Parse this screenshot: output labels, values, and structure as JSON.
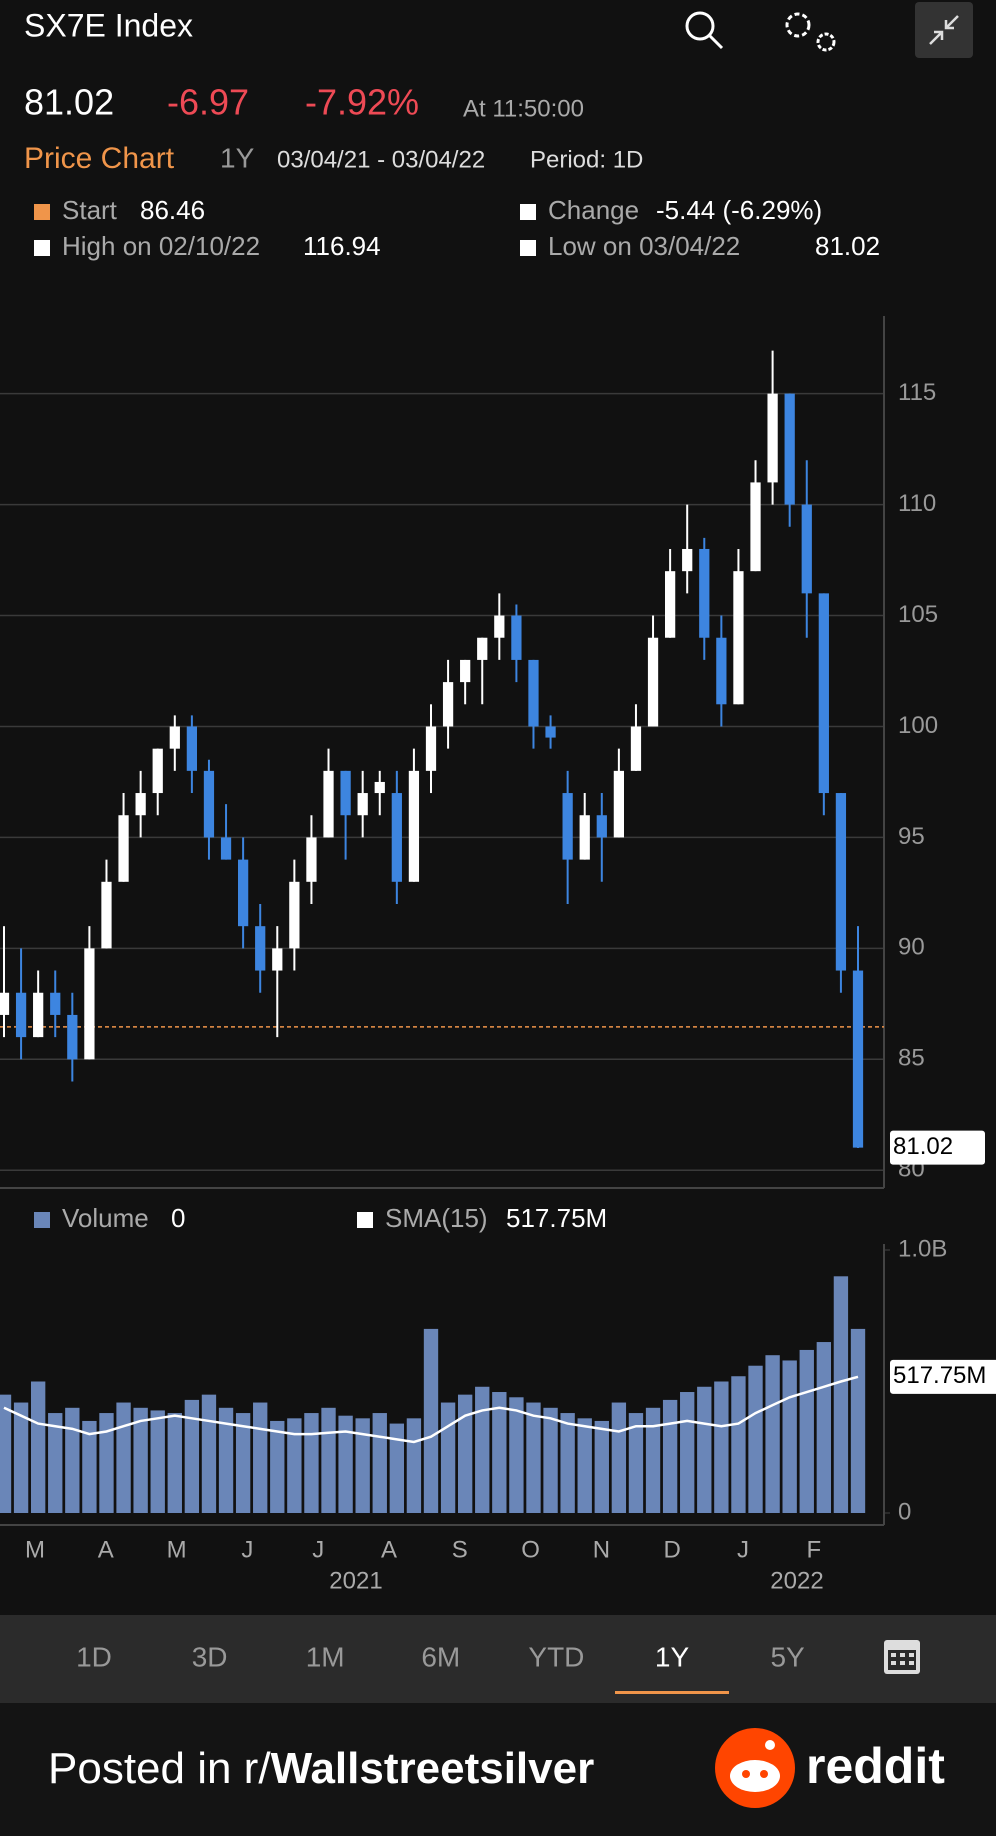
{
  "header": {
    "title": "SX7E Index",
    "price": "81.02",
    "change": "-6.97",
    "change_pct": "-7.92%",
    "time": "At 11:50:00",
    "chart_name": "Price Chart",
    "range": "1Y",
    "dates": "03/04/21 - 03/04/22",
    "period": "Period: 1D"
  },
  "legend": {
    "start_label": "Start",
    "start_value": "86.46",
    "change_label": "Change",
    "change_value": "-5.44 (-6.29%)",
    "high_label": "High on 02/10/22",
    "high_value": "116.94",
    "low_label": "Low on 03/04/22",
    "low_value": "81.02"
  },
  "chart_data": [
    {
      "type": "candlestick",
      "candles": [
        [
          87,
          91,
          86,
          88
        ],
        [
          88,
          90,
          85,
          86
        ],
        [
          86,
          89,
          86,
          88
        ],
        [
          88,
          89,
          86,
          87
        ],
        [
          87,
          88,
          84,
          85
        ],
        [
          85,
          91,
          85,
          90
        ],
        [
          90,
          94,
          90,
          93
        ],
        [
          93,
          97,
          93,
          96
        ],
        [
          96,
          98,
          95,
          97
        ],
        [
          97,
          99,
          96,
          99
        ],
        [
          99,
          100.5,
          98,
          100
        ],
        [
          100,
          100.5,
          97,
          98
        ],
        [
          98,
          98.5,
          94,
          95
        ],
        [
          95,
          96.5,
          94,
          94
        ],
        [
          94,
          95,
          90,
          91
        ],
        [
          91,
          92,
          88,
          89
        ],
        [
          89,
          91,
          86,
          90
        ],
        [
          90,
          94,
          89,
          93
        ],
        [
          93,
          96,
          92,
          95
        ],
        [
          95,
          99,
          95,
          98
        ],
        [
          98,
          98,
          94,
          96
        ],
        [
          96,
          98,
          95,
          97
        ],
        [
          97,
          98,
          96,
          97.5
        ],
        [
          97,
          98,
          92,
          93
        ],
        [
          93,
          99,
          93,
          98
        ],
        [
          98,
          101,
          97,
          100
        ],
        [
          100,
          103,
          99,
          102
        ],
        [
          102,
          103,
          101,
          103
        ],
        [
          103,
          104,
          101,
          104
        ],
        [
          104,
          106,
          103,
          105
        ],
        [
          105,
          105.5,
          102,
          103
        ],
        [
          103,
          103,
          99,
          100
        ],
        [
          100,
          100.5,
          99,
          99.5
        ],
        [
          97,
          98,
          92,
          94
        ],
        [
          94,
          97,
          94,
          96
        ],
        [
          96,
          97,
          93,
          95
        ],
        [
          95,
          99,
          95,
          98
        ],
        [
          98,
          101,
          98,
          100
        ],
        [
          100,
          105,
          100,
          104
        ],
        [
          104,
          108,
          104,
          107
        ],
        [
          107,
          110,
          106,
          108
        ],
        [
          108,
          108.5,
          103,
          104
        ],
        [
          104,
          105,
          100,
          101
        ],
        [
          101,
          108,
          101,
          107
        ],
        [
          107,
          112,
          107,
          111
        ],
        [
          111,
          116.94,
          110,
          115
        ],
        [
          115,
          115,
          109,
          110
        ],
        [
          110,
          112,
          104,
          106
        ],
        [
          106,
          106,
          96,
          97
        ],
        [
          97,
          97,
          88,
          89
        ],
        [
          89,
          91,
          81,
          81.02
        ]
      ],
      "up_color": "#ffffff",
      "down_color": "#3d85e0",
      "ylim": [
        79.2,
        118.5
      ],
      "yticks": [
        80,
        85,
        90,
        95,
        100,
        105,
        110,
        115
      ],
      "grid": true,
      "reference_line": 86.46,
      "reference_color": "#f0954a"
    },
    {
      "type": "bar",
      "series": [
        {
          "name": "Volume",
          "color": "#6a86b8",
          "current": 0,
          "values": [
            450,
            420,
            500,
            380,
            400,
            350,
            380,
            420,
            400,
            390,
            380,
            430,
            450,
            400,
            380,
            420,
            350,
            360,
            380,
            400,
            370,
            360,
            380,
            340,
            360,
            700,
            420,
            450,
            480,
            460,
            440,
            420,
            400,
            380,
            360,
            350,
            420,
            380,
            400,
            430,
            460,
            480,
            500,
            520,
            560,
            600,
            580,
            620,
            650,
            900,
            700
          ]
        },
        {
          "name": "SMA(15)",
          "color": "#ffffff",
          "line": true,
          "current_label": "517.75M",
          "values": [
            400,
            370,
            340,
            330,
            320,
            300,
            310,
            330,
            350,
            360,
            370,
            360,
            350,
            340,
            330,
            320,
            310,
            300,
            300,
            305,
            310,
            300,
            290,
            280,
            270,
            290,
            330,
            370,
            390,
            400,
            390,
            370,
            360,
            340,
            330,
            320,
            310,
            330,
            330,
            340,
            350,
            340,
            330,
            340,
            380,
            410,
            440,
            460,
            480,
            500,
            517.75
          ]
        }
      ],
      "ylim": [
        0,
        1000
      ],
      "yticks": [
        0,
        {
          "value": 1000,
          "label": "1.0B"
        }
      ],
      "months": [
        "M",
        "A",
        "M",
        "J",
        "J",
        "A",
        "S",
        "O",
        "N",
        "D",
        "J",
        "F"
      ],
      "years": [
        "2021",
        "2022"
      ]
    }
  ],
  "tabs": {
    "items": [
      "1D",
      "3D",
      "1M",
      "6M",
      "YTD",
      "1Y",
      "5Y"
    ],
    "active": 5
  },
  "footer": {
    "posted": "Posted in r/",
    "subreddit": "Wallstreetsilver",
    "brand": "reddit"
  }
}
